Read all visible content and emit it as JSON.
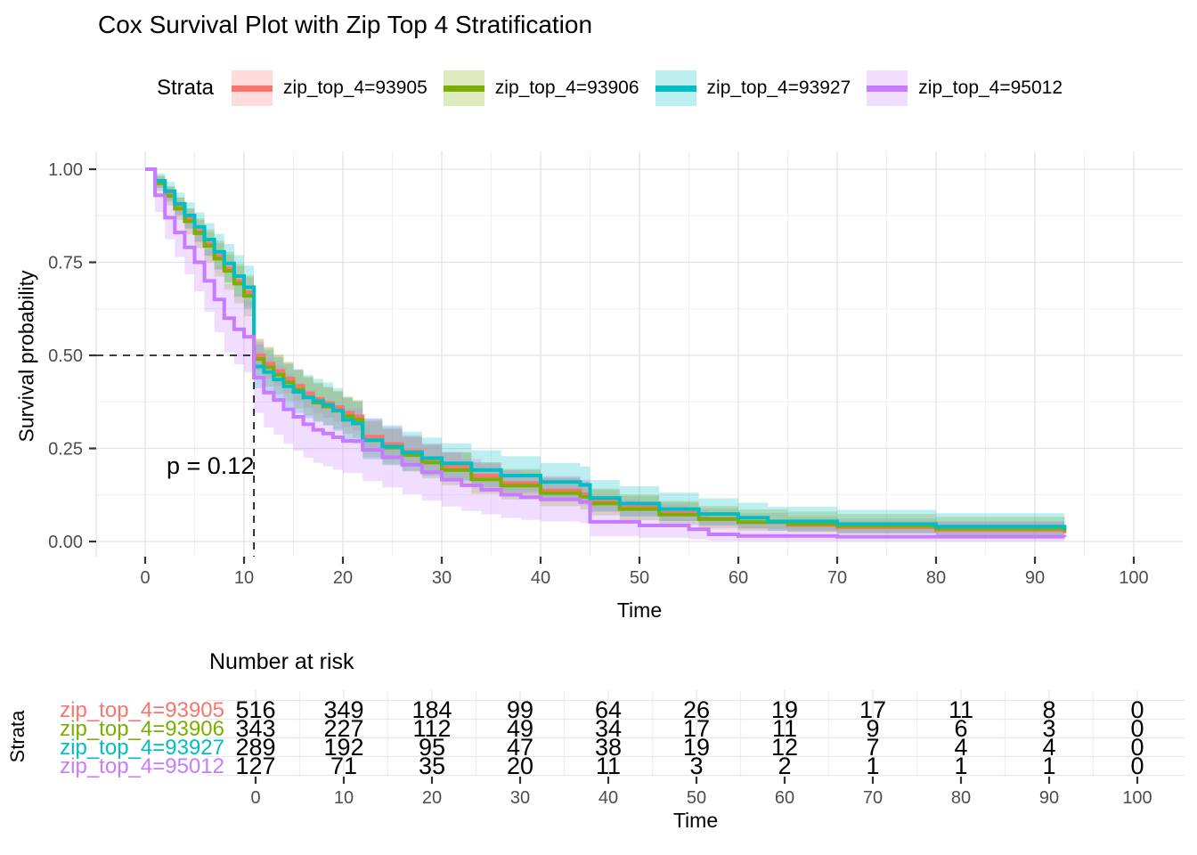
{
  "title": "Cox Survival Plot with Zip Top 4 Stratification",
  "legend": {
    "title": "Strata",
    "items": [
      {
        "label": "zip_top_4=93905",
        "color": "#F8766D"
      },
      {
        "label": "zip_top_4=93906",
        "color": "#7CAE00"
      },
      {
        "label": "zip_top_4=93927",
        "color": "#00BFC4"
      },
      {
        "label": "zip_top_4=95012",
        "color": "#C77CFF"
      }
    ]
  },
  "chart_data": {
    "type": "line",
    "variant": "kaplan_meier_step_curves_with_ci_bands",
    "title": "Cox Survival Plot with Zip Top 4 Stratification",
    "xlabel": "Time",
    "ylabel": "Survival probability",
    "xlim": [
      0,
      100
    ],
    "ylim": [
      0,
      1
    ],
    "xticks": [
      0,
      10,
      20,
      30,
      40,
      50,
      60,
      70,
      80,
      90,
      100
    ],
    "ytick_values": [
      0,
      0.25,
      0.5,
      0.75,
      1
    ],
    "ytick_labels": [
      "0.00",
      "0.25",
      "0.50",
      "0.75",
      "1.00"
    ],
    "grid": {
      "major": true,
      "minor": true
    },
    "legend_position": "top",
    "annotation": {
      "text": "p = 0.12"
    },
    "median_guide": {
      "time": 11,
      "survival": 0.5,
      "style": "dashed"
    },
    "band_opacity": 0.26,
    "grid_major_color": "#E3E3E3",
    "grid_minor_color": "#F0F0F0",
    "tick_color": "#333333",
    "axis_text_color": "#4D4D4D",
    "series": [
      {
        "name": "zip_top_4=93905",
        "color": "#F8766D",
        "points": [
          [
            0,
            1,
            1,
            1
          ],
          [
            1,
            0.966,
            0.95,
            0.982
          ],
          [
            2,
            0.933,
            0.912,
            0.954
          ],
          [
            3,
            0.9,
            0.876,
            0.924
          ],
          [
            4,
            0.867,
            0.84,
            0.894
          ],
          [
            5,
            0.834,
            0.804,
            0.864
          ],
          [
            6,
            0.8,
            0.768,
            0.832
          ],
          [
            7,
            0.767,
            0.732,
            0.802
          ],
          [
            8,
            0.734,
            0.697,
            0.771
          ],
          [
            9,
            0.7,
            0.66,
            0.74
          ],
          [
            10,
            0.67,
            0.63,
            0.71
          ],
          [
            11,
            0.5,
            0.46,
            0.542
          ],
          [
            12,
            0.478,
            0.438,
            0.52
          ],
          [
            13,
            0.458,
            0.418,
            0.5
          ],
          [
            14,
            0.438,
            0.398,
            0.48
          ],
          [
            15,
            0.418,
            0.378,
            0.46
          ],
          [
            16,
            0.398,
            0.359,
            0.44
          ],
          [
            17,
            0.383,
            0.344,
            0.424
          ],
          [
            18,
            0.372,
            0.333,
            0.413
          ],
          [
            19,
            0.361,
            0.322,
            0.402
          ],
          [
            20,
            0.346,
            0.308,
            0.387
          ],
          [
            21,
            0.336,
            0.298,
            0.377
          ],
          [
            22,
            0.282,
            0.245,
            0.322
          ],
          [
            24,
            0.262,
            0.226,
            0.301
          ],
          [
            26,
            0.242,
            0.207,
            0.28
          ],
          [
            28,
            0.222,
            0.188,
            0.259
          ],
          [
            30,
            0.202,
            0.169,
            0.238
          ],
          [
            33,
            0.177,
            0.145,
            0.212
          ],
          [
            36,
            0.157,
            0.127,
            0.191
          ],
          [
            40,
            0.137,
            0.108,
            0.17
          ],
          [
            44,
            0.127,
            0.099,
            0.159
          ],
          [
            45,
            0.107,
            0.081,
            0.138
          ],
          [
            48,
            0.092,
            0.068,
            0.122
          ],
          [
            52,
            0.077,
            0.055,
            0.105
          ],
          [
            56,
            0.062,
            0.042,
            0.089
          ],
          [
            60,
            0.052,
            0.034,
            0.077
          ],
          [
            65,
            0.044,
            0.027,
            0.068
          ],
          [
            70,
            0.038,
            0.022,
            0.062
          ],
          [
            80,
            0.031,
            0.017,
            0.054
          ],
          [
            93,
            0.022,
            0.01,
            0.045
          ]
        ]
      },
      {
        "name": "zip_top_4=93906",
        "color": "#7CAE00",
        "points": [
          [
            0,
            1,
            1,
            1
          ],
          [
            1,
            0.962,
            0.942,
            0.982
          ],
          [
            2,
            0.928,
            0.903,
            0.953
          ],
          [
            3,
            0.894,
            0.864,
            0.924
          ],
          [
            4,
            0.86,
            0.825,
            0.895
          ],
          [
            5,
            0.828,
            0.788,
            0.868
          ],
          [
            6,
            0.794,
            0.75,
            0.838
          ],
          [
            7,
            0.76,
            0.712,
            0.808
          ],
          [
            8,
            0.727,
            0.676,
            0.778
          ],
          [
            9,
            0.693,
            0.64,
            0.746
          ],
          [
            10,
            0.66,
            0.605,
            0.715
          ],
          [
            11,
            0.49,
            0.438,
            0.545
          ],
          [
            12,
            0.468,
            0.416,
            0.523
          ],
          [
            13,
            0.448,
            0.396,
            0.503
          ],
          [
            14,
            0.428,
            0.377,
            0.483
          ],
          [
            15,
            0.408,
            0.357,
            0.463
          ],
          [
            16,
            0.388,
            0.338,
            0.443
          ],
          [
            17,
            0.373,
            0.324,
            0.427
          ],
          [
            18,
            0.362,
            0.313,
            0.416
          ],
          [
            19,
            0.351,
            0.302,
            0.405
          ],
          [
            20,
            0.337,
            0.289,
            0.39
          ],
          [
            21,
            0.327,
            0.279,
            0.38
          ],
          [
            22,
            0.272,
            0.226,
            0.325
          ],
          [
            24,
            0.252,
            0.207,
            0.304
          ],
          [
            26,
            0.232,
            0.188,
            0.283
          ],
          [
            28,
            0.212,
            0.17,
            0.262
          ],
          [
            30,
            0.192,
            0.151,
            0.24
          ],
          [
            33,
            0.167,
            0.128,
            0.213
          ],
          [
            36,
            0.15,
            0.113,
            0.195
          ],
          [
            40,
            0.13,
            0.095,
            0.173
          ],
          [
            44,
            0.12,
            0.086,
            0.162
          ],
          [
            45,
            0.102,
            0.07,
            0.142
          ],
          [
            48,
            0.087,
            0.057,
            0.126
          ],
          [
            52,
            0.072,
            0.045,
            0.109
          ],
          [
            56,
            0.06,
            0.035,
            0.095
          ],
          [
            60,
            0.052,
            0.029,
            0.086
          ],
          [
            65,
            0.047,
            0.025,
            0.08
          ],
          [
            70,
            0.042,
            0.021,
            0.074
          ],
          [
            80,
            0.035,
            0.016,
            0.066
          ],
          [
            93,
            0.027,
            0.011,
            0.057
          ]
        ]
      },
      {
        "name": "zip_top_4=93927",
        "color": "#00BFC4",
        "points": [
          [
            0,
            1,
            1,
            1
          ],
          [
            1,
            0.969,
            0.95,
            0.988
          ],
          [
            2,
            0.941,
            0.916,
            0.966
          ],
          [
            3,
            0.907,
            0.877,
            0.937
          ],
          [
            4,
            0.876,
            0.841,
            0.911
          ],
          [
            5,
            0.845,
            0.806,
            0.884
          ],
          [
            6,
            0.811,
            0.767,
            0.855
          ],
          [
            7,
            0.778,
            0.73,
            0.826
          ],
          [
            8,
            0.747,
            0.695,
            0.799
          ],
          [
            9,
            0.713,
            0.657,
            0.769
          ],
          [
            10,
            0.683,
            0.625,
            0.741
          ],
          [
            11,
            0.47,
            0.412,
            0.53
          ],
          [
            12,
            0.455,
            0.397,
            0.515
          ],
          [
            13,
            0.435,
            0.377,
            0.495
          ],
          [
            14,
            0.417,
            0.36,
            0.477
          ],
          [
            15,
            0.402,
            0.345,
            0.462
          ],
          [
            16,
            0.387,
            0.331,
            0.447
          ],
          [
            17,
            0.377,
            0.321,
            0.437
          ],
          [
            18,
            0.367,
            0.311,
            0.427
          ],
          [
            19,
            0.352,
            0.297,
            0.412
          ],
          [
            20,
            0.327,
            0.273,
            0.386
          ],
          [
            21,
            0.317,
            0.263,
            0.376
          ],
          [
            22,
            0.272,
            0.221,
            0.33
          ],
          [
            24,
            0.255,
            0.205,
            0.312
          ],
          [
            26,
            0.239,
            0.19,
            0.295
          ],
          [
            28,
            0.224,
            0.176,
            0.279
          ],
          [
            30,
            0.21,
            0.163,
            0.264
          ],
          [
            33,
            0.192,
            0.146,
            0.245
          ],
          [
            36,
            0.177,
            0.133,
            0.229
          ],
          [
            40,
            0.16,
            0.117,
            0.211
          ],
          [
            44,
            0.152,
            0.11,
            0.202
          ],
          [
            45,
            0.117,
            0.08,
            0.165
          ],
          [
            48,
            0.102,
            0.067,
            0.148
          ],
          [
            52,
            0.087,
            0.055,
            0.131
          ],
          [
            56,
            0.074,
            0.044,
            0.116
          ],
          [
            60,
            0.064,
            0.036,
            0.104
          ],
          [
            63,
            0.054,
            0.028,
            0.093
          ],
          [
            70,
            0.047,
            0.023,
            0.085
          ],
          [
            80,
            0.04,
            0.018,
            0.076
          ],
          [
            93,
            0.032,
            0.012,
            0.066
          ]
        ]
      },
      {
        "name": "zip_top_4=95012",
        "color": "#C77CFF",
        "points": [
          [
            0,
            1,
            1,
            1
          ],
          [
            1,
            0.93,
            0.885,
            0.975
          ],
          [
            2,
            0.87,
            0.812,
            0.928
          ],
          [
            3,
            0.83,
            0.764,
            0.896
          ],
          [
            4,
            0.79,
            0.718,
            0.862
          ],
          [
            5,
            0.75,
            0.672,
            0.828
          ],
          [
            6,
            0.7,
            0.617,
            0.783
          ],
          [
            7,
            0.65,
            0.562,
            0.738
          ],
          [
            8,
            0.6,
            0.508,
            0.692
          ],
          [
            9,
            0.57,
            0.476,
            0.664
          ],
          [
            10,
            0.55,
            0.455,
            0.645
          ],
          [
            11,
            0.44,
            0.345,
            0.536
          ],
          [
            12,
            0.4,
            0.306,
            0.495
          ],
          [
            13,
            0.38,
            0.287,
            0.474
          ],
          [
            14,
            0.355,
            0.263,
            0.448
          ],
          [
            15,
            0.335,
            0.244,
            0.427
          ],
          [
            16,
            0.315,
            0.225,
            0.406
          ],
          [
            17,
            0.3,
            0.211,
            0.39
          ],
          [
            18,
            0.29,
            0.202,
            0.379
          ],
          [
            19,
            0.28,
            0.193,
            0.368
          ],
          [
            20,
            0.27,
            0.184,
            0.357
          ],
          [
            22,
            0.246,
            0.162,
            0.331
          ],
          [
            24,
            0.226,
            0.145,
            0.309
          ],
          [
            26,
            0.206,
            0.127,
            0.286
          ],
          [
            28,
            0.186,
            0.11,
            0.263
          ],
          [
            30,
            0.166,
            0.094,
            0.24
          ],
          [
            32,
            0.151,
            0.082,
            0.222
          ],
          [
            34,
            0.139,
            0.073,
            0.208
          ],
          [
            36,
            0.126,
            0.063,
            0.192
          ],
          [
            38,
            0.119,
            0.058,
            0.184
          ],
          [
            40,
            0.113,
            0.054,
            0.176
          ],
          [
            44,
            0.106,
            0.049,
            0.167
          ],
          [
            45,
            0.053,
            0.014,
            0.112
          ],
          [
            50,
            0.043,
            0.01,
            0.098
          ],
          [
            55,
            0.033,
            0.006,
            0.084
          ],
          [
            57,
            0.019,
            0.002,
            0.063
          ],
          [
            60,
            0.015,
            0.001,
            0.057
          ],
          [
            70,
            0.013,
            0.001,
            0.054
          ],
          [
            80,
            0.013,
            0.001,
            0.054
          ],
          [
            93,
            0.012,
            0.001,
            0.053
          ]
        ]
      }
    ]
  },
  "risk_table": {
    "title": "Number at risk",
    "axis_title": "Strata",
    "xlabel": "Time",
    "times": [
      0,
      10,
      20,
      30,
      40,
      50,
      60,
      70,
      80,
      90,
      100
    ],
    "rows": [
      {
        "label": "zip_top_4=93905",
        "color": "#F8766D",
        "values": [
          516,
          349,
          184,
          99,
          64,
          26,
          19,
          17,
          11,
          8,
          0
        ]
      },
      {
        "label": "zip_top_4=93906",
        "color": "#7CAE00",
        "values": [
          343,
          227,
          112,
          49,
          34,
          17,
          11,
          9,
          6,
          3,
          0
        ]
      },
      {
        "label": "zip_top_4=93927",
        "color": "#00BFC4",
        "values": [
          289,
          192,
          95,
          47,
          38,
          19,
          12,
          7,
          4,
          4,
          0
        ]
      },
      {
        "label": "zip_top_4=95012",
        "color": "#C77CFF",
        "values": [
          127,
          71,
          35,
          20,
          11,
          3,
          2,
          1,
          1,
          1,
          0
        ]
      }
    ]
  }
}
